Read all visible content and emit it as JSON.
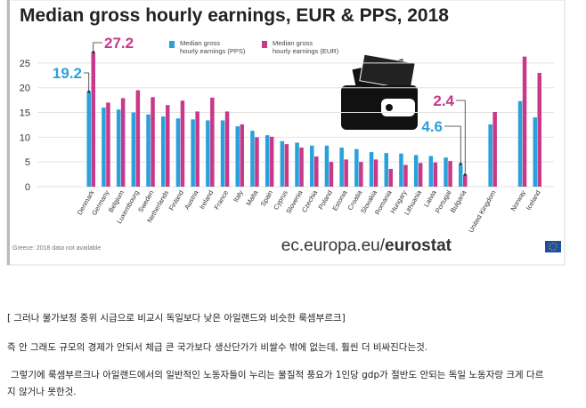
{
  "chart_data": {
    "type": "bar",
    "title": "Median gross hourly earnings, EUR & PPS, 2018",
    "categories": [
      "Denmark",
      "Germany",
      "Belgium",
      "Luxembourg",
      "Sweden",
      "Netherlands",
      "Finland",
      "Austria",
      "Ireland",
      "France",
      "Italy",
      "Malta",
      "Spain",
      "Cyprus",
      "Slovenia",
      "Czechia",
      "Poland",
      "Estonia",
      "Croatia",
      "Slovakia",
      "Romania",
      "Hungary",
      "Lithuania",
      "Latvia",
      "Portugal",
      "Bulgaria",
      null,
      "United Kingdom",
      null,
      "Norway",
      "Iceland"
    ],
    "series": [
      {
        "name": "Median gross hourly earnings (PPS)",
        "color": "#2aa1db",
        "values": [
          19.2,
          16.0,
          15.6,
          15.0,
          14.6,
          14.2,
          13.8,
          13.6,
          13.4,
          13.4,
          12.2,
          11.3,
          10.4,
          9.2,
          8.9,
          8.3,
          8.3,
          7.9,
          7.6,
          7.0,
          6.8,
          6.7,
          6.4,
          6.2,
          5.9,
          4.6,
          null,
          12.6,
          null,
          17.3,
          14.0
        ]
      },
      {
        "name": "Median gross hourly earnings (EUR)",
        "color": "#c8398a",
        "values": [
          27.2,
          17.0,
          17.9,
          19.5,
          18.1,
          16.5,
          17.4,
          15.2,
          18.0,
          15.2,
          12.6,
          10.0,
          10.1,
          8.6,
          7.9,
          6.1,
          5.0,
          5.5,
          5.0,
          5.5,
          3.6,
          4.4,
          4.8,
          4.9,
          5.2,
          2.4,
          null,
          15.1,
          null,
          26.3,
          23.0
        ]
      }
    ],
    "ylim": [
      0,
      27.5
    ],
    "yticks": [
      0,
      5,
      10,
      15,
      20,
      25
    ],
    "grid": true,
    "footnote": "Greece: 2018 data not available",
    "source_domain": "ec.europa.eu/",
    "source_brand": "eurostat"
  },
  "text": {
    "caption": "[ 그러나 물가보정 중위 시급으로 비교시 독일보다 낮은 아일랜드와 비슷한 룩셈부르크]",
    "paragraph1": "즉 안 그래도 규모의 경제가 안되서 체급 큰 국가보다 생산단가가 비쌀수 밖에 없는데, 훨씬 더 비싸진다는것.",
    "paragraph2_line1": "그렇기에 룩셈부르크나 아일랜드에서의 일반적인 노동자들이 누리는 물질적 풍요가 1인당 gdp가 절반도 안되는 독일 노동자랑 크게 다르",
    "paragraph2_line2": "지 않거나 못한것."
  }
}
